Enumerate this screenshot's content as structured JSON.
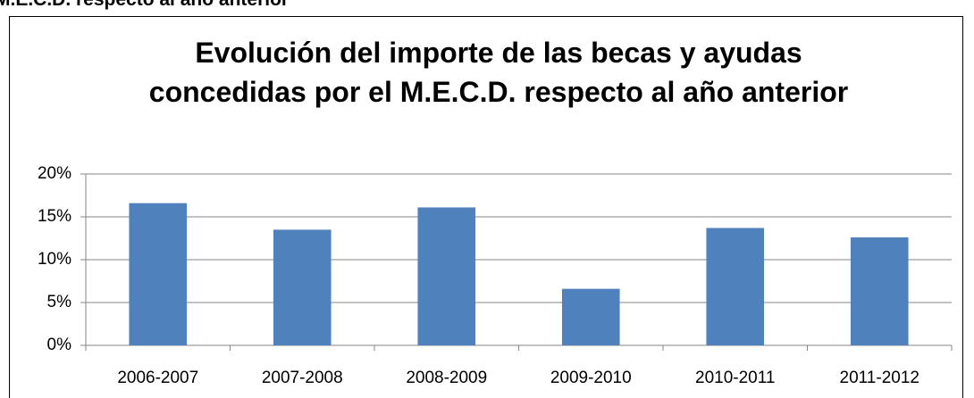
{
  "caption": "M.E.C.D. respecto al año anterior",
  "chart_data": {
    "type": "bar",
    "title": "Evolución del importe de las becas y ayudas concedidas por el M.E.C.D. respecto al año anterior",
    "categories": [
      "2006-2007",
      "2007-2008",
      "2008-2009",
      "2009-2010",
      "2010-2011",
      "2011-2012"
    ],
    "values": [
      16.6,
      13.5,
      16.1,
      6.6,
      13.7,
      12.6
    ],
    "color": "#4f81bd",
    "ylim": [
      0,
      20
    ],
    "yticks": [
      {
        "value": 0,
        "label": "0%"
      },
      {
        "value": 5,
        "label": "5%"
      },
      {
        "value": 10,
        "label": "10%"
      },
      {
        "value": 15,
        "label": "15%"
      },
      {
        "value": 20,
        "label": "20%"
      }
    ],
    "grid": true
  }
}
